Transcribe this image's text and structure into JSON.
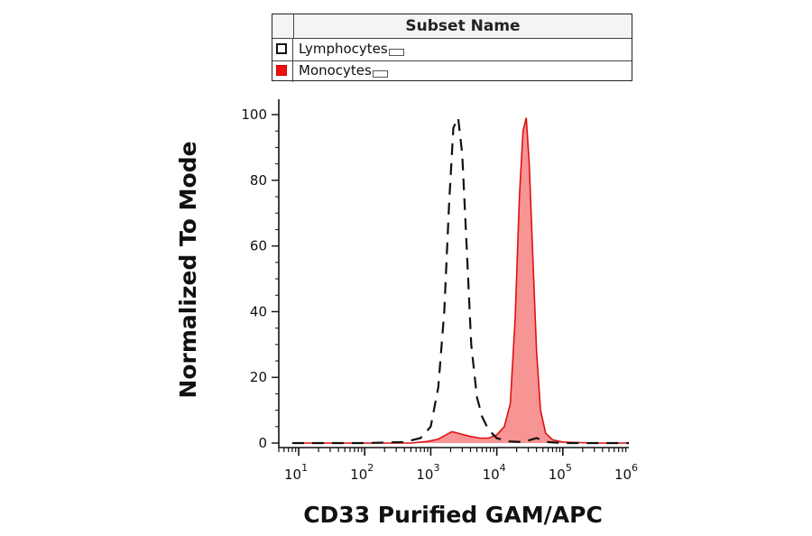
{
  "legend": {
    "header": "Subset Name",
    "items": [
      {
        "label": "Lymphocytes",
        "style": "dashed-outline",
        "color": "#111111"
      },
      {
        "label": "Monocytes",
        "style": "filled",
        "color": "#ee1111"
      }
    ]
  },
  "chart_data": {
    "type": "area",
    "xlabel": "CD33 Purified GAM/APC",
    "ylabel": "Normalized To Mode",
    "x_scale": "log",
    "xlim": [
      5,
      1000000
    ],
    "ylim": [
      0,
      100
    ],
    "y_ticks": [
      0,
      20,
      40,
      60,
      80,
      100
    ],
    "x_ticks": [
      {
        "value": 10,
        "base": "10",
        "exp": "1"
      },
      {
        "value": 100,
        "base": "10",
        "exp": "2"
      },
      {
        "value": 1000,
        "base": "10",
        "exp": "3"
      },
      {
        "value": 10000,
        "base": "10",
        "exp": "4"
      },
      {
        "value": 100000,
        "base": "10",
        "exp": "5"
      },
      {
        "value": 1000000,
        "base": "10",
        "exp": "6"
      }
    ],
    "series": [
      {
        "name": "Lymphocytes",
        "style": "dashed",
        "color": "#111111",
        "x": [
          8,
          100,
          400,
          700,
          1000,
          1300,
          1600,
          1900,
          2200,
          2600,
          3000,
          3500,
          4100,
          5000,
          6000,
          7500,
          10000,
          15000,
          25000,
          40000,
          60000,
          100000,
          300000,
          1000000
        ],
        "y": [
          0,
          0,
          0.3,
          1.5,
          5,
          17,
          40,
          73,
          96,
          99,
          88,
          60,
          30,
          14,
          8,
          4,
          1.5,
          0.5,
          0.3,
          1.5,
          0.3,
          0,
          0,
          0
        ]
      },
      {
        "name": "Monocytes",
        "style": "filled",
        "color": "#ee1111",
        "x": [
          8,
          100,
          500,
          900,
          1300,
          1700,
          2100,
          2600,
          3200,
          4000,
          5500,
          7500,
          10000,
          13000,
          16000,
          19000,
          22000,
          25000,
          28000,
          31000,
          35000,
          40000,
          46000,
          55000,
          70000,
          100000,
          300000,
          1000000
        ],
        "y": [
          0,
          0,
          0,
          0.5,
          1.2,
          2.5,
          3.5,
          3,
          2.5,
          2,
          1.5,
          1.5,
          2.5,
          5,
          12,
          38,
          75,
          95,
          99,
          85,
          58,
          28,
          10,
          3,
          1,
          0.3,
          0,
          0
        ]
      }
    ]
  }
}
